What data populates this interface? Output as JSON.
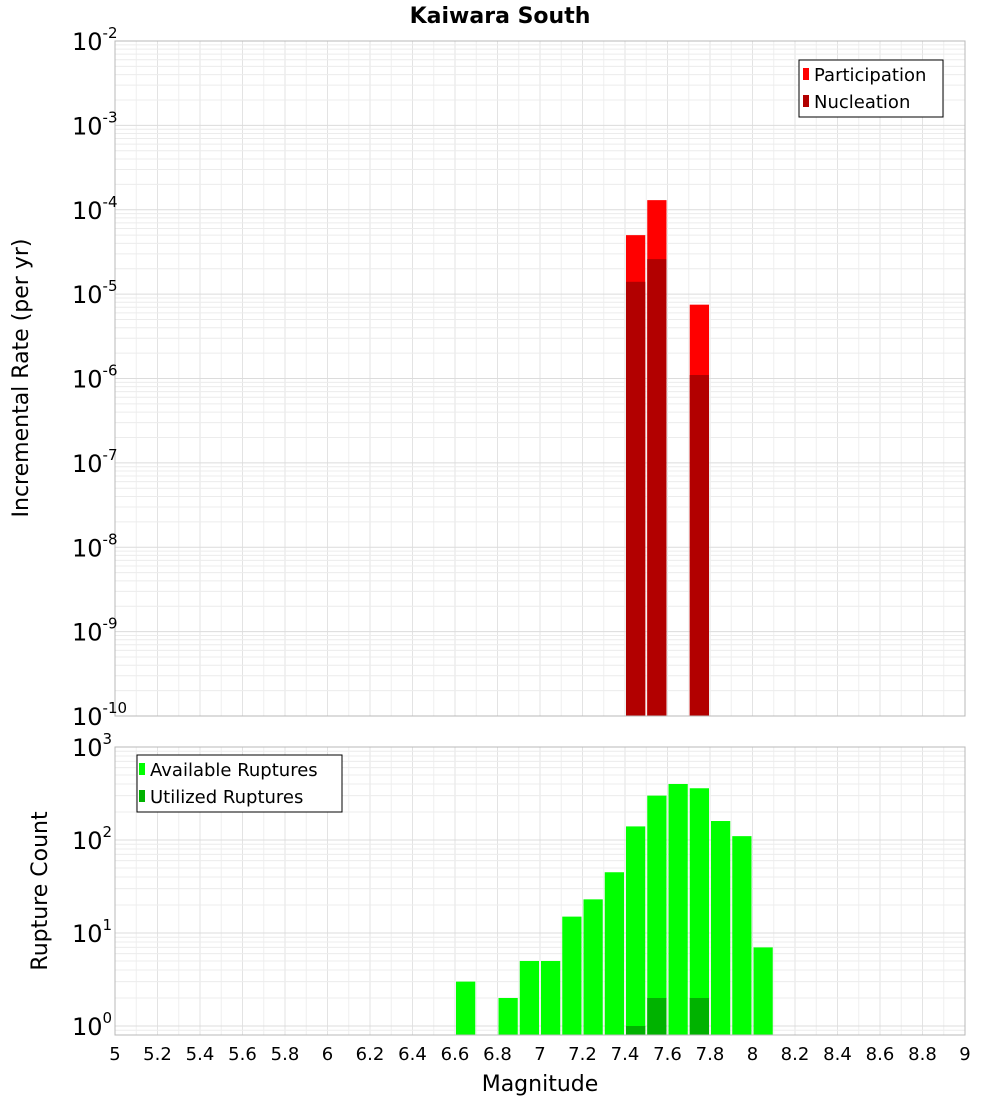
{
  "title": "Kaiwara South",
  "chart_data": [
    {
      "type": "bar",
      "title": "Kaiwara South",
      "xlabel": "Magnitude",
      "ylabel": "Incremental Rate (per yr)",
      "yscale": "log",
      "ylim": [
        1e-10,
        0.01
      ],
      "xlim": [
        5,
        9
      ],
      "bar_width": 0.1,
      "legend_position": "top-right",
      "ytick_exponents": [
        "-10",
        "-9",
        "-8",
        "-7",
        "-6",
        "-5",
        "-4",
        "-3",
        "-2"
      ],
      "series": [
        {
          "name": "Participation",
          "color": "#ff0000",
          "x": [
            7.45,
            7.55,
            7.75
          ],
          "values": [
            5e-05,
            0.00013,
            7.5e-06
          ]
        },
        {
          "name": "Nucleation",
          "color": "#b20000",
          "x": [
            7.45,
            7.55,
            7.75
          ],
          "values": [
            1.4e-05,
            2.6e-05,
            1.1e-06
          ]
        }
      ]
    },
    {
      "type": "bar",
      "xlabel": "Magnitude",
      "ylabel": "Rupture Count",
      "yscale": "log",
      "ylim": [
        0.8,
        1000
      ],
      "xlim": [
        5,
        9
      ],
      "bar_width": 0.1,
      "legend_position": "top-left",
      "ytick_exponents": [
        "0",
        "1",
        "2",
        "3"
      ],
      "xticks": [
        "5",
        "5.2",
        "5.4",
        "5.6",
        "5.8",
        "6",
        "6.2",
        "6.4",
        "6.6",
        "6.8",
        "7",
        "7.2",
        "7.4",
        "7.6",
        "7.8",
        "8",
        "8.2",
        "8.4",
        "8.6",
        "8.8",
        "9"
      ],
      "series": [
        {
          "name": "Available Ruptures",
          "color": "#00ff00",
          "x": [
            6.65,
            6.85,
            6.95,
            7.05,
            7.15,
            7.25,
            7.35,
            7.45,
            7.55,
            7.65,
            7.75,
            7.85,
            7.95,
            8.05
          ],
          "values": [
            3,
            2,
            5,
            5,
            15,
            23,
            45,
            140,
            300,
            400,
            360,
            160,
            110,
            7
          ]
        },
        {
          "name": "Utilized Ruptures",
          "color": "#00b200",
          "x": [
            7.45,
            7.55,
            7.75
          ],
          "values": [
            1,
            2,
            2
          ]
        }
      ]
    }
  ]
}
